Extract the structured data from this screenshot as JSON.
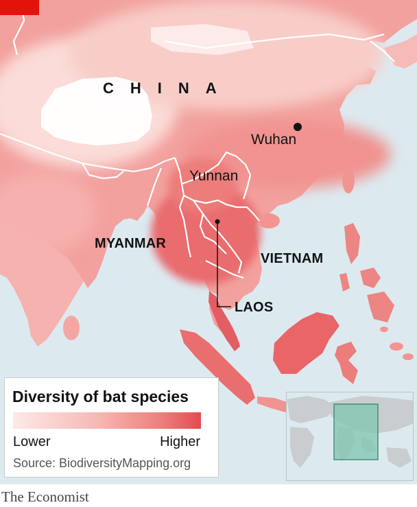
{
  "map": {
    "labels": {
      "china": "CHINA",
      "wuhan": "Wuhan",
      "yunnan": "Yunnan",
      "myanmar": "MYANMAR",
      "vietnam": "VIETNAM",
      "laos": "LAOS"
    },
    "colors": {
      "sea": "#dceaf0",
      "low": "#fde9e7",
      "mid": "#f7b8b4",
      "high": "#e24b4f",
      "border": "#ffffff",
      "inset_box": "#7fc5b0",
      "brand_red": "#e3120b"
    },
    "icons": [
      "city-marker-icon",
      "locator-inset-map"
    ]
  },
  "legend": {
    "title": "Diversity of bat species",
    "low_label": "Lower",
    "high_label": "Higher",
    "source": "Source: BiodiversityMapping.org"
  },
  "footer": {
    "brand": "The Economist"
  }
}
